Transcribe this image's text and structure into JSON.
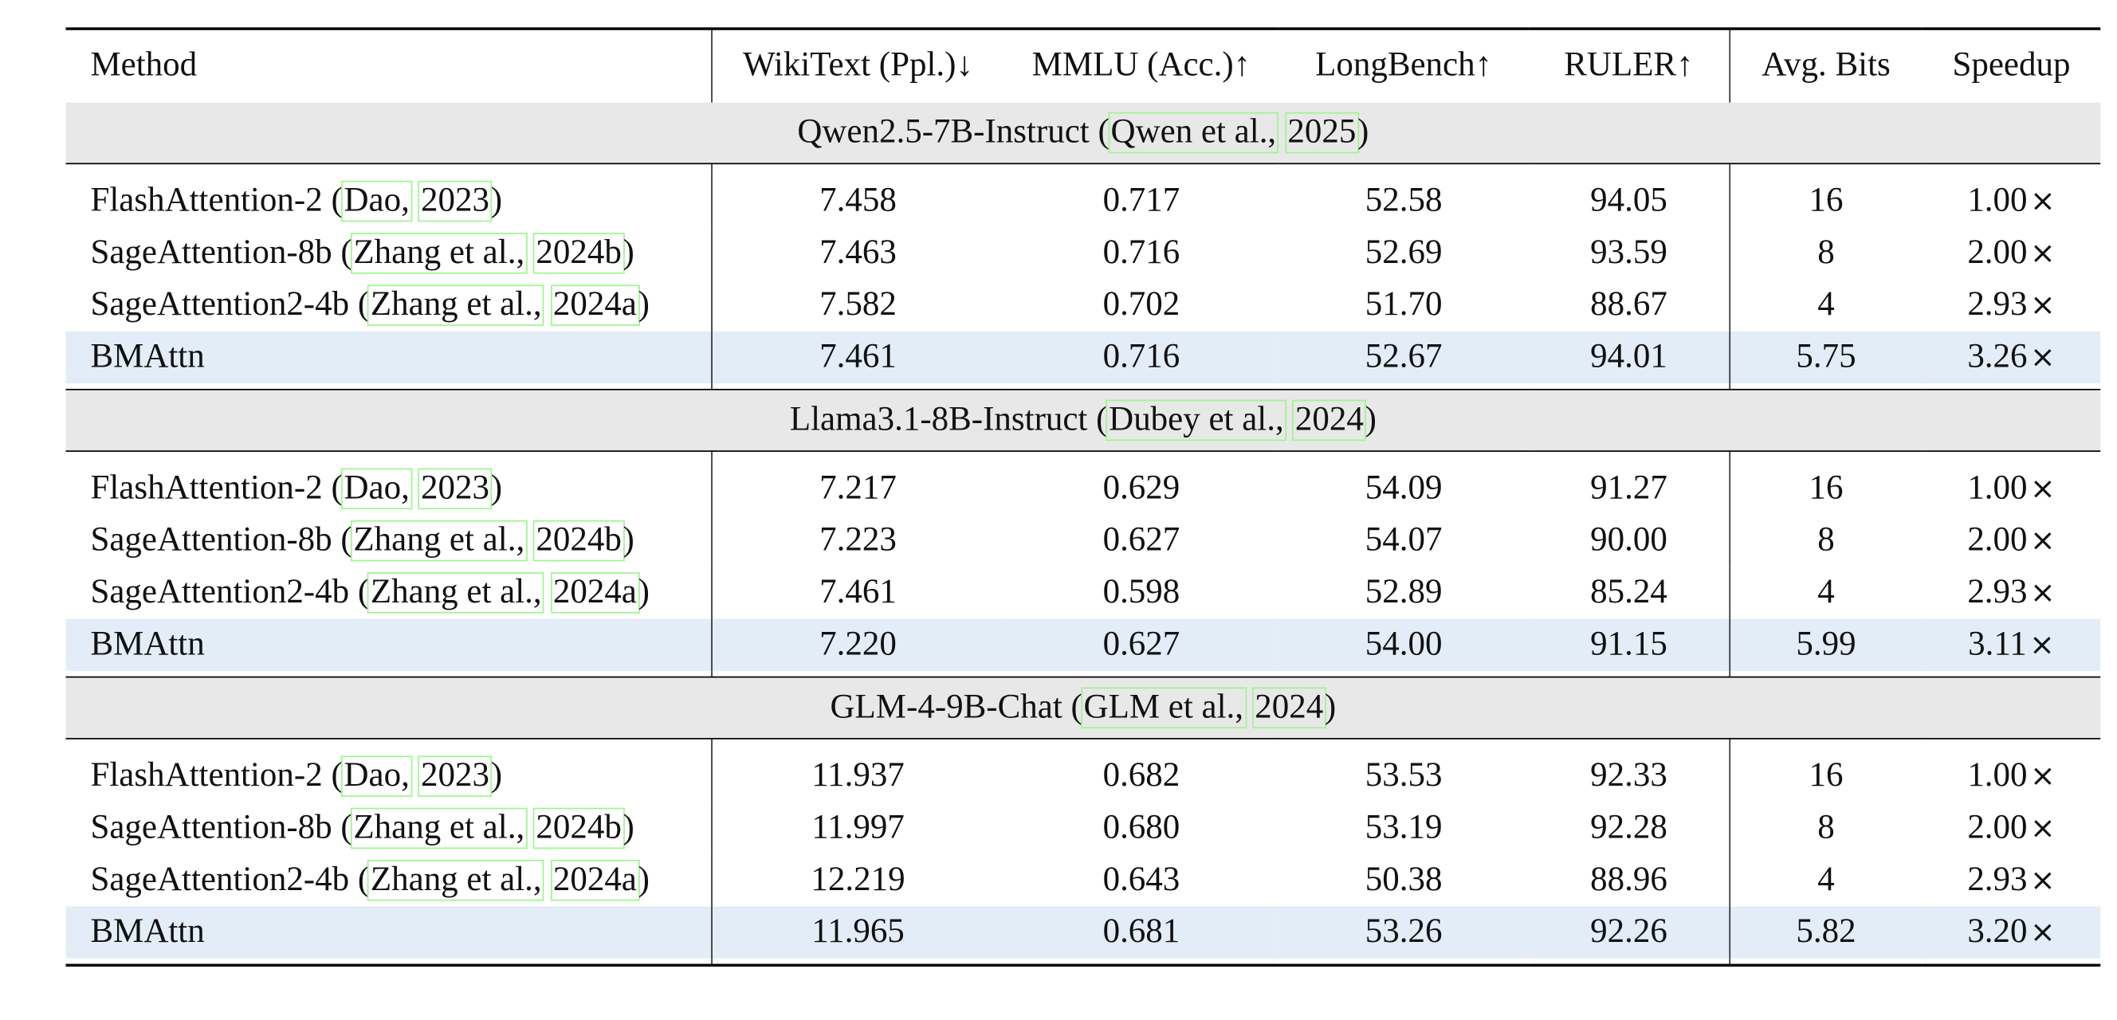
{
  "columns": {
    "method": "Method",
    "wikitext": "WikiText (Ppl.)↓",
    "mmlu": "MMLU (Acc.)↑",
    "longbench": "LongBench↑",
    "ruler": "RULER↑",
    "bits": "Avg. Bits",
    "speedup": "Speedup"
  },
  "sections": [
    {
      "model": "Qwen2.5-7B-Instruct (",
      "cite_author": "Qwen et al.,",
      "cite_year": "2025",
      "close": ")",
      "rows": [
        {
          "name": "FlashAttention-2 (",
          "author": "Dao,",
          "year": "2023",
          "close": ")",
          "wikitext": "7.458",
          "mmlu": "0.717",
          "longbench": "52.58",
          "ruler": "94.05",
          "bits": "16",
          "speedup": "1.00"
        },
        {
          "name": "SageAttention-8b (",
          "author": "Zhang et al.,",
          "year": "2024b",
          "close": ")",
          "wikitext": "7.463",
          "mmlu": "0.716",
          "longbench": "52.69",
          "ruler": "93.59",
          "bits": "8",
          "speedup": "2.00"
        },
        {
          "name": "SageAttention2-4b (",
          "author": "Zhang et al.,",
          "year": "2024a",
          "close": ")",
          "wikitext": "7.582",
          "mmlu": "0.702",
          "longbench": "51.70",
          "ruler": "88.67",
          "bits": "4",
          "speedup": "2.93"
        },
        {
          "name": "BMAttn",
          "wikitext": "7.461",
          "mmlu": "0.716",
          "longbench": "52.67",
          "ruler": "94.01",
          "bits": "5.75",
          "speedup": "3.26"
        }
      ]
    },
    {
      "model": "Llama3.1-8B-Instruct (",
      "cite_author": "Dubey et al.,",
      "cite_year": "2024",
      "close": ")",
      "rows": [
        {
          "name": "FlashAttention-2 (",
          "author": "Dao,",
          "year": "2023",
          "close": ")",
          "wikitext": "7.217",
          "mmlu": "0.629",
          "longbench": "54.09",
          "ruler": "91.27",
          "bits": "16",
          "speedup": "1.00"
        },
        {
          "name": "SageAttention-8b (",
          "author": "Zhang et al.,",
          "year": "2024b",
          "close": ")",
          "wikitext": "7.223",
          "mmlu": "0.627",
          "longbench": "54.07",
          "ruler": "90.00",
          "bits": "8",
          "speedup": "2.00"
        },
        {
          "name": "SageAttention2-4b (",
          "author": "Zhang et al.,",
          "year": "2024a",
          "close": ")",
          "wikitext": "7.461",
          "mmlu": "0.598",
          "longbench": "52.89",
          "ruler": "85.24",
          "bits": "4",
          "speedup": "2.93"
        },
        {
          "name": "BMAttn",
          "wikitext": "7.220",
          "mmlu": "0.627",
          "longbench": "54.00",
          "ruler": "91.15",
          "bits": "5.99",
          "speedup": "3.11"
        }
      ]
    },
    {
      "model": "GLM-4-9B-Chat (",
      "cite_author": "GLM et al.,",
      "cite_year": "2024",
      "close": ")",
      "rows": [
        {
          "name": "FlashAttention-2 (",
          "author": "Dao,",
          "year": "2023",
          "close": ")",
          "wikitext": "11.937",
          "mmlu": "0.682",
          "longbench": "53.53",
          "ruler": "92.33",
          "bits": "16",
          "speedup": "1.00"
        },
        {
          "name": "SageAttention-8b (",
          "author": "Zhang et al.,",
          "year": "2024b",
          "close": ")",
          "wikitext": "11.997",
          "mmlu": "0.680",
          "longbench": "53.19",
          "ruler": "92.28",
          "bits": "8",
          "speedup": "2.00"
        },
        {
          "name": "SageAttention2-4b (",
          "author": "Zhang et al.,",
          "year": "2024a",
          "close": ")",
          "wikitext": "12.219",
          "mmlu": "0.643",
          "longbench": "50.38",
          "ruler": "88.96",
          "bits": "4",
          "speedup": "2.93"
        },
        {
          "name": "BMAttn",
          "wikitext": "11.965",
          "mmlu": "0.681",
          "longbench": "53.26",
          "ruler": "92.26",
          "bits": "5.82",
          "speedup": "3.20"
        }
      ]
    }
  ],
  "times_symbol": "×"
}
